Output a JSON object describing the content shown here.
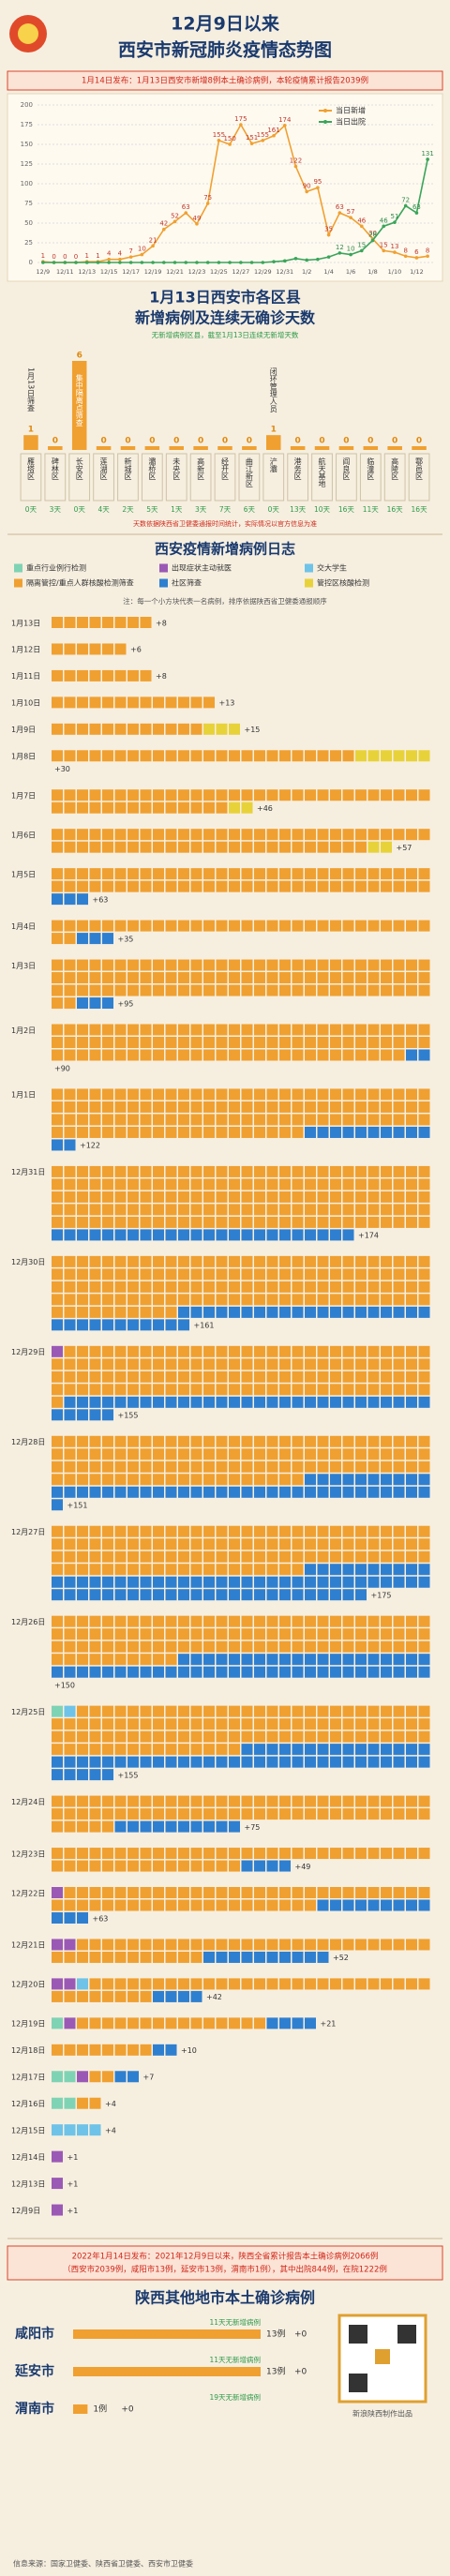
{
  "header": {
    "title_line1": "12月9日以来",
    "title_line2": "西安市新冠肺炎疫情态势图",
    "banner": "1月14日发布：1月13日西安市新增8例本土确诊病例，本轮疫情累计报告2039例"
  },
  "chart_data": [
    {
      "type": "line",
      "legend_position": "top-right",
      "grid": true,
      "x": [
        "12/9",
        null,
        "12/11",
        null,
        "12/13",
        null,
        "12/15",
        null,
        "12/17",
        null,
        "12/19",
        null,
        "12/21",
        null,
        "12/23",
        null,
        "12/25",
        null,
        "12/27",
        null,
        "12/29",
        null,
        "12/31",
        null,
        "1/2",
        null,
        "1/4",
        null,
        "1/6",
        null,
        "1/8",
        null,
        "1/10",
        null,
        "1/12",
        null
      ],
      "series": [
        {
          "name": "当日新增",
          "color": "#f0a030",
          "values": [
            1,
            0,
            0,
            0,
            1,
            1,
            4,
            4,
            7,
            10,
            21,
            42,
            52,
            63,
            49,
            75,
            155,
            150,
            175,
            151,
            155,
            161,
            174,
            122,
            90,
            95,
            35,
            63,
            57,
            46,
            30,
            15,
            13,
            8,
            6,
            8
          ]
        },
        {
          "name": "当日出院",
          "color": "#3aa55a",
          "values": [
            0,
            0,
            0,
            0,
            0,
            0,
            0,
            0,
            0,
            0,
            0,
            0,
            0,
            0,
            0,
            0,
            0,
            0,
            0,
            0,
            0,
            1,
            2,
            5,
            3,
            4,
            7,
            12,
            10,
            15,
            28,
            46,
            51,
            72,
            63,
            131
          ]
        }
      ],
      "ylim": [
        0,
        200
      ],
      "yticks": [
        0,
        25,
        50,
        75,
        100,
        125,
        150,
        175,
        200
      ]
    },
    {
      "type": "bar",
      "title": "1月13日西安市各区县",
      "subtitle": "新增病例及连续无确诊天数",
      "note": "无新增病例区县，截至1月13日连续无新增天数",
      "color": "#f0a030",
      "categories": [
        "雁塔区",
        "碑林区",
        "长安区",
        "莲湖区",
        "新城区",
        "灞桥区",
        "未央区",
        "高新区",
        "经开区",
        "曲江新区",
        "浐灞",
        "港务区",
        "航天基地",
        "阎良区",
        "临潼区",
        "高陵区",
        "鄠邑区"
      ],
      "values": [
        1,
        0,
        6,
        0,
        0,
        0,
        0,
        0,
        0,
        0,
        1,
        0,
        0,
        0,
        0,
        0,
        0
      ],
      "day_labels": [
        "0天",
        "3天",
        "0天",
        "4天",
        "2天",
        "5天",
        "1天",
        "3天",
        "7天",
        "6天",
        "0天",
        "13天",
        "10天",
        "16天",
        "11天",
        "16天",
        "16天"
      ],
      "bar_notes": [
        "1月13日筛查",
        null,
        "集中隔离点筛查",
        null,
        null,
        null,
        null,
        null,
        null,
        null,
        "闭环管理人员",
        null,
        null,
        null,
        null,
        null,
        null
      ],
      "footnote": "天数依据陕西省卫健委通报时间统计，实际情况以官方信息为准"
    },
    {
      "type": "hbar",
      "title": "陕西其他地市本土确诊病例",
      "color": "#f0a030",
      "categories": [
        "咸阳市",
        "延安市",
        "渭南市"
      ],
      "values": [
        13,
        13,
        1
      ],
      "value_labels": [
        "13例",
        "13例",
        "1例"
      ],
      "new_labels": [
        "+0",
        "+0",
        "+0"
      ],
      "notes": [
        "11天无新增病例",
        "11天无新增病例",
        "19天无新增病例"
      ]
    }
  ],
  "case_log": {
    "title": "西安疫情新增病例日志",
    "note": "注：每一个小方块代表一名病例，排序依据陕西省卫健委通报顺序",
    "kinds": [
      {
        "name": "重点行业例行检测",
        "color": "#7fd3b5"
      },
      {
        "name": "出现症状主动就医",
        "color": "#9b59b6"
      },
      {
        "name": "交大学生",
        "color": "#6fc3e8"
      },
      {
        "name": "隔离管控/重点人群核酸检测筛查",
        "color": "#f0a030"
      },
      {
        "name": "社区筛查",
        "color": "#2f7fd0"
      },
      {
        "name": "管控区核酸检测",
        "color": "#e8d23a"
      }
    ],
    "days": [
      {
        "date": "1月13日",
        "total": 8,
        "total_label": "+8",
        "counts": [
          0,
          0,
          0,
          8,
          0,
          0
        ]
      },
      {
        "date": "1月12日",
        "total": 6,
        "total_label": "+6",
        "counts": [
          0,
          0,
          0,
          6,
          0,
          0
        ]
      },
      {
        "date": "1月11日",
        "total": 8,
        "total_label": "+8",
        "counts": [
          0,
          0,
          0,
          8,
          0,
          0
        ]
      },
      {
        "date": "1月10日",
        "total": 13,
        "total_label": "+13",
        "counts": [
          0,
          0,
          0,
          13,
          0,
          0
        ]
      },
      {
        "date": "1月9日",
        "total": 15,
        "total_label": "+15",
        "counts": [
          0,
          0,
          0,
          12,
          0,
          3
        ]
      },
      {
        "date": "1月8日",
        "total": 30,
        "total_label": "+30",
        "counts": [
          0,
          0,
          0,
          24,
          0,
          6
        ]
      },
      {
        "date": "1月7日",
        "total": 46,
        "total_label": "+46",
        "counts": [
          0,
          0,
          0,
          44,
          0,
          2
        ]
      },
      {
        "date": "1月6日",
        "total": 57,
        "total_label": "+57",
        "counts": [
          0,
          0,
          0,
          55,
          0,
          2
        ]
      },
      {
        "date": "1月5日",
        "total": 63,
        "total_label": "+63",
        "counts": [
          0,
          0,
          0,
          60,
          3,
          0
        ]
      },
      {
        "date": "1月4日",
        "total": 35,
        "total_label": "+35",
        "counts": [
          0,
          0,
          0,
          32,
          3,
          0
        ]
      },
      {
        "date": "1月3日",
        "total": 95,
        "total_label": "+95",
        "counts": [
          0,
          0,
          0,
          92,
          3,
          0
        ]
      },
      {
        "date": "1月2日",
        "total": 90,
        "total_label": "+90",
        "counts": [
          0,
          0,
          0,
          88,
          2,
          0
        ]
      },
      {
        "date": "1月1日",
        "total": 122,
        "total_label": "+122",
        "counts": [
          0,
          0,
          0,
          110,
          12,
          0
        ]
      },
      {
        "date": "12月31日",
        "total": 174,
        "total_label": "+174",
        "counts": [
          0,
          0,
          0,
          150,
          24,
          0
        ]
      },
      {
        "date": "12月30日",
        "total": 161,
        "total_label": "+161",
        "counts": [
          0,
          0,
          0,
          130,
          31,
          0
        ]
      },
      {
        "date": "12月29日",
        "total": 155,
        "total_label": "+155",
        "counts": [
          0,
          1,
          0,
          120,
          34,
          0
        ]
      },
      {
        "date": "12月28日",
        "total": 151,
        "total_label": "+151",
        "counts": [
          0,
          0,
          0,
          110,
          41,
          0
        ]
      },
      {
        "date": "12月27日",
        "total": 175,
        "total_label": "+175",
        "counts": [
          0,
          0,
          0,
          110,
          65,
          0
        ]
      },
      {
        "date": "12月26日",
        "total": 150,
        "total_label": "+150",
        "counts": [
          0,
          0,
          0,
          100,
          50,
          0
        ]
      },
      {
        "date": "12月25日",
        "total": 155,
        "total_label": "+155",
        "counts": [
          1,
          0,
          1,
          103,
          50,
          0
        ]
      },
      {
        "date": "12月24日",
        "total": 75,
        "total_label": "+75",
        "counts": [
          0,
          0,
          0,
          65,
          10,
          0
        ]
      },
      {
        "date": "12月23日",
        "total": 49,
        "total_label": "+49",
        "counts": [
          0,
          0,
          0,
          45,
          4,
          0
        ]
      },
      {
        "date": "12月22日",
        "total": 63,
        "total_label": "+63",
        "counts": [
          0,
          1,
          0,
          50,
          12,
          0
        ]
      },
      {
        "date": "12月21日",
        "total": 52,
        "total_label": "+52",
        "counts": [
          0,
          2,
          0,
          40,
          10,
          0
        ]
      },
      {
        "date": "12月20日",
        "total": 42,
        "total_label": "+42",
        "counts": [
          0,
          2,
          1,
          35,
          4,
          0
        ]
      },
      {
        "date": "12月19日",
        "total": 21,
        "total_label": "+21",
        "counts": [
          1,
          1,
          0,
          15,
          4,
          0
        ]
      },
      {
        "date": "12月18日",
        "total": 10,
        "total_label": "+10",
        "counts": [
          0,
          0,
          0,
          8,
          2,
          0
        ]
      },
      {
        "date": "12月17日",
        "total": 7,
        "total_label": "+7",
        "counts": [
          2,
          1,
          0,
          2,
          2,
          0
        ]
      },
      {
        "date": "12月16日",
        "total": 4,
        "total_label": "+4",
        "counts": [
          2,
          0,
          0,
          2,
          0,
          0
        ]
      },
      {
        "date": "12月15日",
        "total": 4,
        "total_label": "+4",
        "counts": [
          0,
          0,
          4,
          0,
          0,
          0
        ]
      },
      {
        "date": "12月14日",
        "total": 1,
        "total_label": "+1",
        "counts": [
          0,
          1,
          0,
          0,
          0,
          0
        ]
      },
      {
        "date": "12月13日",
        "total": 1,
        "total_label": "+1",
        "counts": [
          0,
          1,
          0,
          0,
          0,
          0
        ]
      },
      {
        "date": "12月9日",
        "total": 1,
        "total_label": "+1",
        "counts": [
          0,
          1,
          0,
          0,
          0,
          0
        ]
      }
    ]
  },
  "summary": {
    "line1": "2022年1月14日发布：2021年12月9日以来，陕西全省累计报告本土确诊病例2066例",
    "line2": "（西安市2039例，咸阳市13例，延安市13例，渭南市1例），其中出院844例，在院1222例"
  },
  "footer": {
    "source": "信息来源：国家卫健委、陕西省卫健委、西安市卫健委",
    "credit": "新浪陕西制作出品"
  }
}
